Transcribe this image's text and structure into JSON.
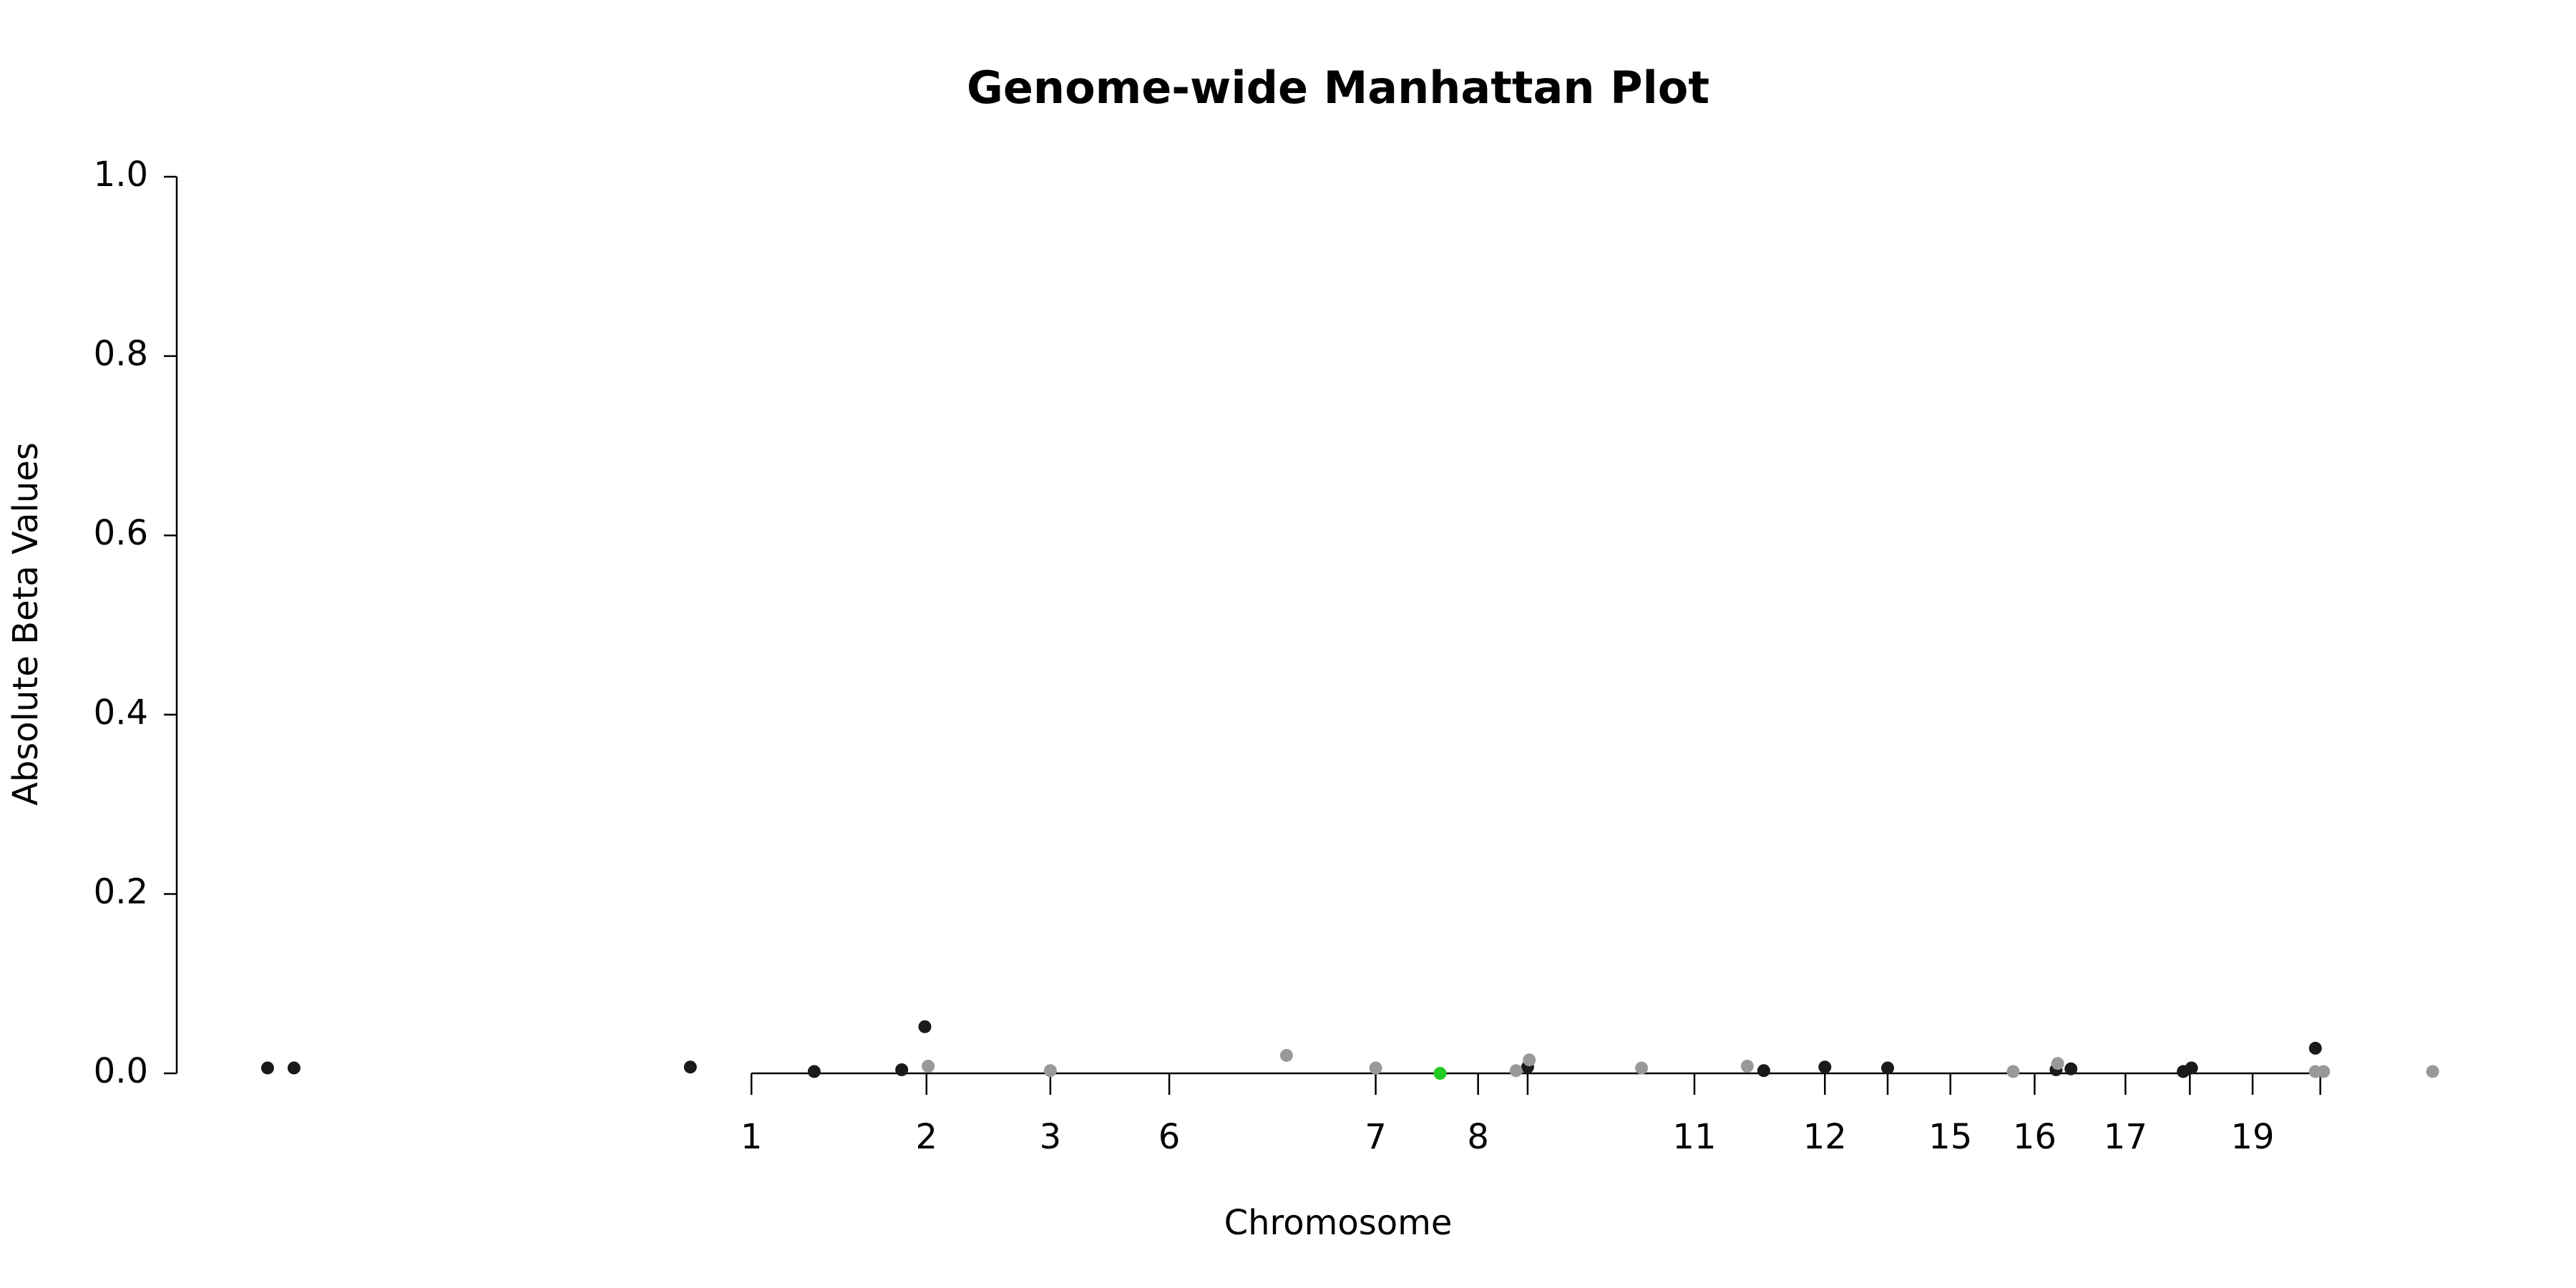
{
  "chart_data": {
    "type": "scatter",
    "title": "Genome-wide Manhattan Plot",
    "x_label": "Chromosome",
    "y_label": "Absolute Beta Values",
    "xlim": [
      0,
      1403
    ],
    "ylim": [
      0,
      1
    ],
    "yticks": [
      {
        "value": 0,
        "label": "0.0"
      },
      {
        "value": 0.2,
        "label": "0.2"
      },
      {
        "value": 0.4,
        "label": "0.4"
      },
      {
        "value": 0.6,
        "label": "0.6"
      },
      {
        "value": 0.8,
        "label": "0.8"
      },
      {
        "value": 1,
        "label": "1.0"
      }
    ],
    "xticks": [
      {
        "value": 348,
        "label": "1"
      },
      {
        "value": 454,
        "label": "2"
      },
      {
        "value": 529,
        "label": "3"
      },
      {
        "value": 601,
        "label": "6"
      },
      {
        "value": 726,
        "label": "7"
      },
      {
        "value": 788,
        "label": "8"
      },
      {
        "value": 818,
        "label": null
      },
      {
        "value": 919,
        "label": "11"
      },
      {
        "value": 998,
        "label": "12"
      },
      {
        "value": 1036,
        "label": null
      },
      {
        "value": 1074,
        "label": "15"
      },
      {
        "value": 1125,
        "label": "16"
      },
      {
        "value": 1180,
        "label": "17"
      },
      {
        "value": 1219,
        "label": null
      },
      {
        "value": 1257,
        "label": "19"
      },
      {
        "value": 1298,
        "label": null
      }
    ],
    "series": [
      {
        "color": "#1a1a1a",
        "x": [
          55,
          71,
          311,
          386,
          439,
          453,
          818,
          961,
          998,
          1036,
          1138,
          1147,
          1215,
          1220,
          1295
        ],
        "values": [
          0.006,
          0.006,
          0.007,
          0.002,
          0.004,
          0.052,
          0.007,
          0.003,
          0.007,
          0.006,
          0.004,
          0.005,
          0.002,
          0.006,
          0.028
        ]
      },
      {
        "color": "#999999",
        "x": [
          455,
          529,
          672,
          726,
          811,
          819,
          887,
          951,
          1112,
          1139,
          1295,
          1300,
          1366
        ],
        "values": [
          0.008,
          0.003,
          0.02,
          0.006,
          0.003,
          0.015,
          0.006,
          0.008,
          0.002,
          0.011,
          0.002,
          0.002,
          0.002
        ]
      },
      {
        "color": "#22cc22",
        "x": [
          765
        ],
        "values": [
          0
        ]
      }
    ]
  }
}
